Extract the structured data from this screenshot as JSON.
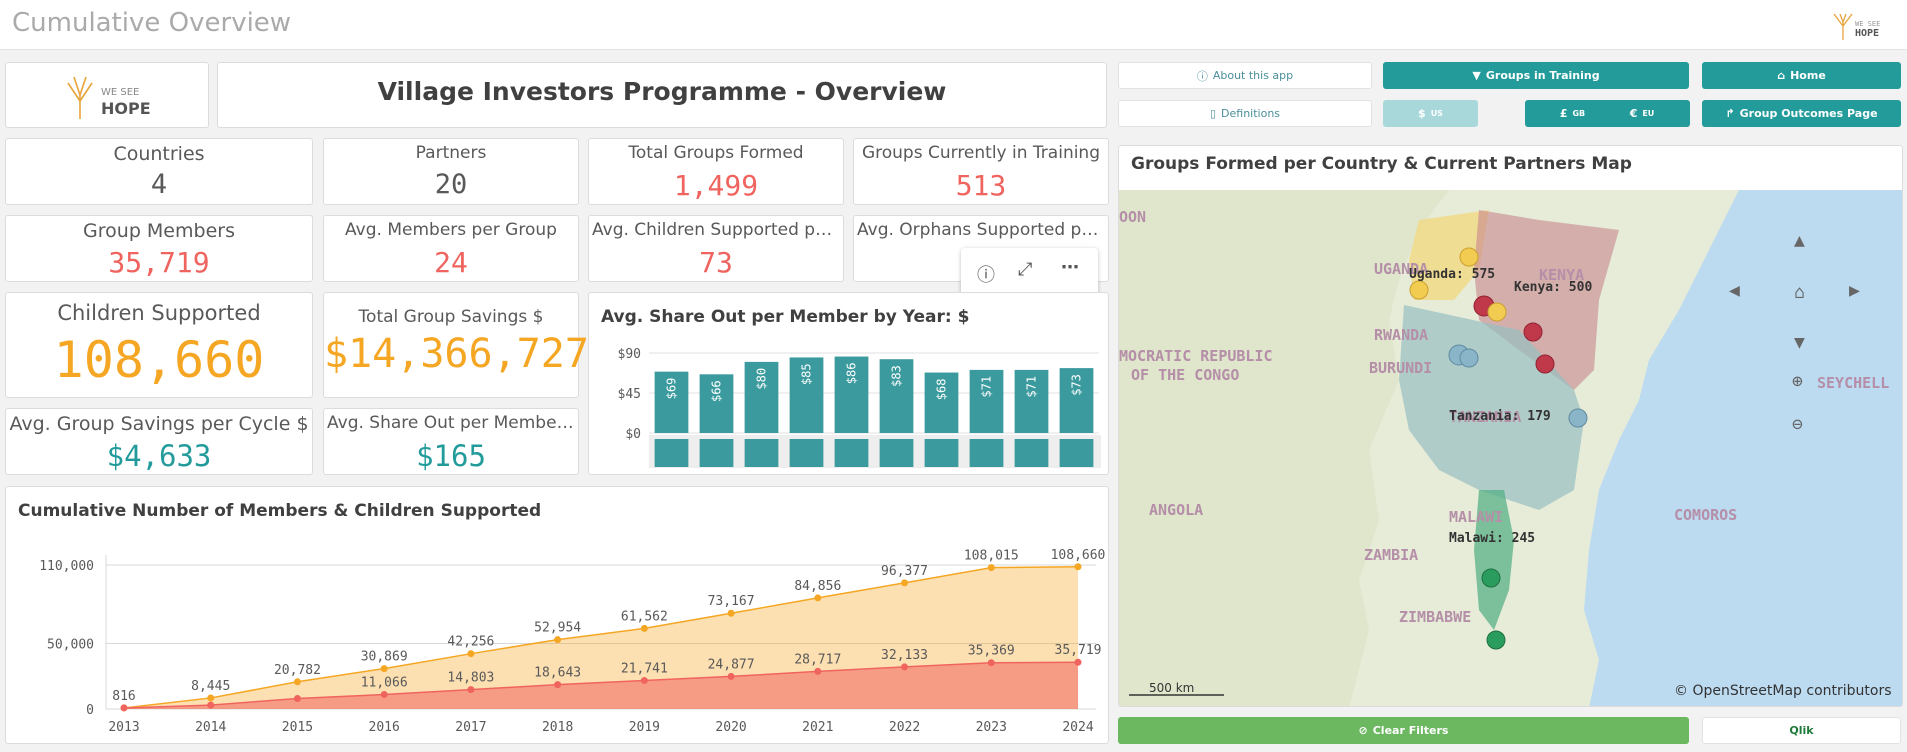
{
  "app_title": "Cumulative Overview",
  "brand": {
    "line1": "WE SEE",
    "line2": "HOPE"
  },
  "banner_title": "Village Investors Programme - Overview",
  "buttons": {
    "about": "About this app",
    "groups_training": "Groups in Training",
    "home": "Home",
    "definitions": "Definitions",
    "usd": "$",
    "usd_sub": "US",
    "gbp": "£",
    "gbp_sub": "GB",
    "eur": "€",
    "eur_sub": "EU",
    "group_outcomes": "Group Outcomes Page",
    "clear_filters": "Clear Filters",
    "qlik": "Qlik"
  },
  "kpis": {
    "countries": {
      "label": "Countries",
      "value": "4"
    },
    "partners": {
      "label": "Partners",
      "value": "20"
    },
    "total_groups": {
      "label": "Total Groups Formed",
      "value": "1,499"
    },
    "groups_training": {
      "label": "Groups Currently in Training",
      "value": "513"
    },
    "group_members": {
      "label": "Group Members",
      "value": "35,719"
    },
    "avg_members": {
      "label": "Avg. Members per Group",
      "value": "24"
    },
    "avg_children": {
      "label": "Avg. Children Supported per G...",
      "value": "73"
    },
    "avg_orphans": {
      "label": "Avg. Orphans Supported per ...",
      "value": ""
    },
    "children_supported": {
      "label": "Children Supported",
      "value": "108,660"
    },
    "total_savings": {
      "label": "Total Group Savings $",
      "value": "$14,366,727"
    },
    "avg_savings_cycle": {
      "label": "Avg. Group Savings per Cycle $",
      "value": "$4,633"
    },
    "avg_shareout": {
      "label": "Avg. Share Out per Member $",
      "value": "$165"
    }
  },
  "colors": {
    "teal": "#239b9b",
    "salmon": "#f0645f",
    "gold": "#f5a623",
    "green": "#6cb860",
    "bar": "#3a9a9e"
  },
  "shareout_chart": {
    "title": "Avg. Share Out per Member by Year: $",
    "chart_data": {
      "type": "bar",
      "y_ticks": [
        "$90",
        "$45",
        "$0"
      ],
      "ylim": [
        0,
        90
      ],
      "values": [
        69,
        66,
        80,
        85,
        86,
        83,
        68,
        71,
        71,
        73
      ],
      "labels": [
        "$69",
        "$66",
        "$80",
        "$85",
        "$86",
        "$83",
        "$68",
        "$71",
        "$71",
        "$73"
      ]
    }
  },
  "cumulative_chart": {
    "title": "Cumulative Number of Members & Children Supported",
    "chart_data": {
      "type": "area",
      "x": [
        "2013",
        "2014",
        "2015",
        "2016",
        "2017",
        "2018",
        "2019",
        "2020",
        "2021",
        "2022",
        "2023",
        "2024"
      ],
      "y_ticks": [
        "110,000",
        "50,000",
        "0"
      ],
      "ylim": [
        0,
        110000
      ],
      "series": [
        {
          "values": [
            816,
            8445,
            20782,
            30869,
            42256,
            52954,
            61562,
            73167,
            84856,
            96377,
            108015,
            108660
          ],
          "labels": [
            "816",
            "8,445",
            "20,782",
            "30,869",
            "42,256",
            "52,954",
            "61,562",
            "73,167",
            "84,856",
            "96,377",
            "108,015",
            "108,660"
          ],
          "color": "#f5a623"
        },
        {
          "values": [
            816,
            3000,
            8000,
            11066,
            14803,
            18643,
            21741,
            24877,
            28717,
            32133,
            35369,
            35719
          ],
          "labels": [
            "",
            "",
            "",
            "11,066",
            "14,803",
            "18,643",
            "21,741",
            "24,877",
            "28,717",
            "32,133",
            "35,369",
            "35,719"
          ],
          "color": "#f0645f"
        }
      ]
    }
  },
  "map": {
    "title": "Groups Formed per Country & Current Partners Map",
    "region_labels": [
      "OON",
      "UGANDA",
      "KENYA",
      "RWANDA",
      "BURUNDI",
      "MOCRATIC REPUBLIC",
      "OF THE CONGO",
      "TANZANIA",
      "ANGOLA",
      "ZAMBIA",
      "MALAWI",
      "COMOROS",
      "SEYCHELL",
      "ZIMBABWE"
    ],
    "count_labels": [
      "Uganda: 575",
      "Kenya: 500",
      "Tanzania: 179",
      "Malawi: 245"
    ],
    "scale": "500 km",
    "attribution": "© OpenStreetMap contributors"
  }
}
